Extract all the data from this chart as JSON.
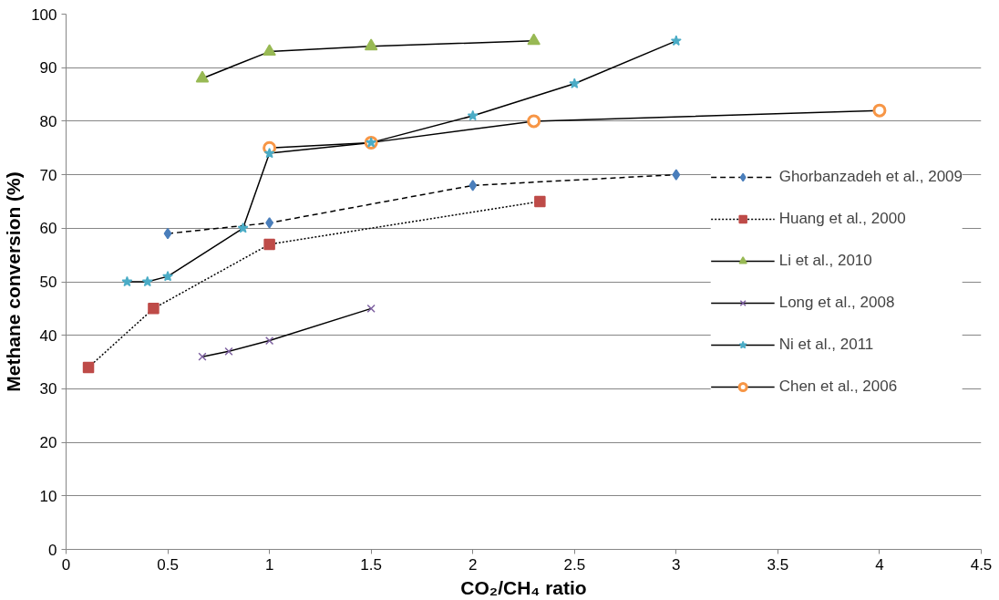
{
  "chart_data": {
    "type": "line",
    "xlabel": "CO₂/CH₄ ratio",
    "ylabel": "Methane conversion (%)",
    "xlim": [
      0,
      4.5
    ],
    "xticks": [
      0,
      0.5,
      1,
      1.5,
      2,
      2.5,
      3,
      3.5,
      4,
      4.5
    ],
    "ylim": [
      0,
      100
    ],
    "yticks": [
      0,
      10,
      20,
      30,
      40,
      50,
      60,
      70,
      80,
      90,
      100
    ],
    "grid": "y",
    "legend": "right",
    "series": [
      {
        "name": "Ghorbanzadeh et al., 2009",
        "color": "#4a7ebb",
        "marker": "diamond",
        "line_style": "dashed",
        "x": [
          0.5,
          1,
          2,
          3
        ],
        "values": [
          59,
          61,
          68,
          70
        ]
      },
      {
        "name": "Huang et al., 2000",
        "color": "#be4b48",
        "marker": "square",
        "line_style": "dotted",
        "x": [
          0.11,
          0.43,
          1,
          2.33
        ],
        "values": [
          34,
          45,
          57,
          65
        ]
      },
      {
        "name": "Li et al., 2010",
        "color": "#98b954",
        "marker": "triangle",
        "line_style": "solid",
        "x": [
          0.67,
          1,
          1.5,
          2.3
        ],
        "values": [
          88,
          93,
          94,
          95
        ]
      },
      {
        "name": "Long et al., 2008",
        "color": "#7d60a0",
        "marker": "cross",
        "line_style": "solid",
        "x": [
          0.67,
          0.8,
          1,
          1.5
        ],
        "values": [
          36,
          37,
          39,
          45
        ]
      },
      {
        "name": "Ni et al., 2011",
        "color": "#4bacc6",
        "marker": "star",
        "line_style": "solid",
        "x": [
          0.3,
          0.4,
          0.5,
          0.87,
          1,
          1.5,
          2,
          2.5,
          3
        ],
        "values": [
          50,
          50,
          51,
          60,
          74,
          76,
          81,
          87,
          95
        ]
      },
      {
        "name": "Chen et al., 2006",
        "color": "#f79646",
        "marker": "circle",
        "line_style": "solid",
        "x": [
          1,
          1.5,
          2.3,
          4
        ],
        "values": [
          75,
          76,
          80,
          82
        ]
      }
    ]
  }
}
